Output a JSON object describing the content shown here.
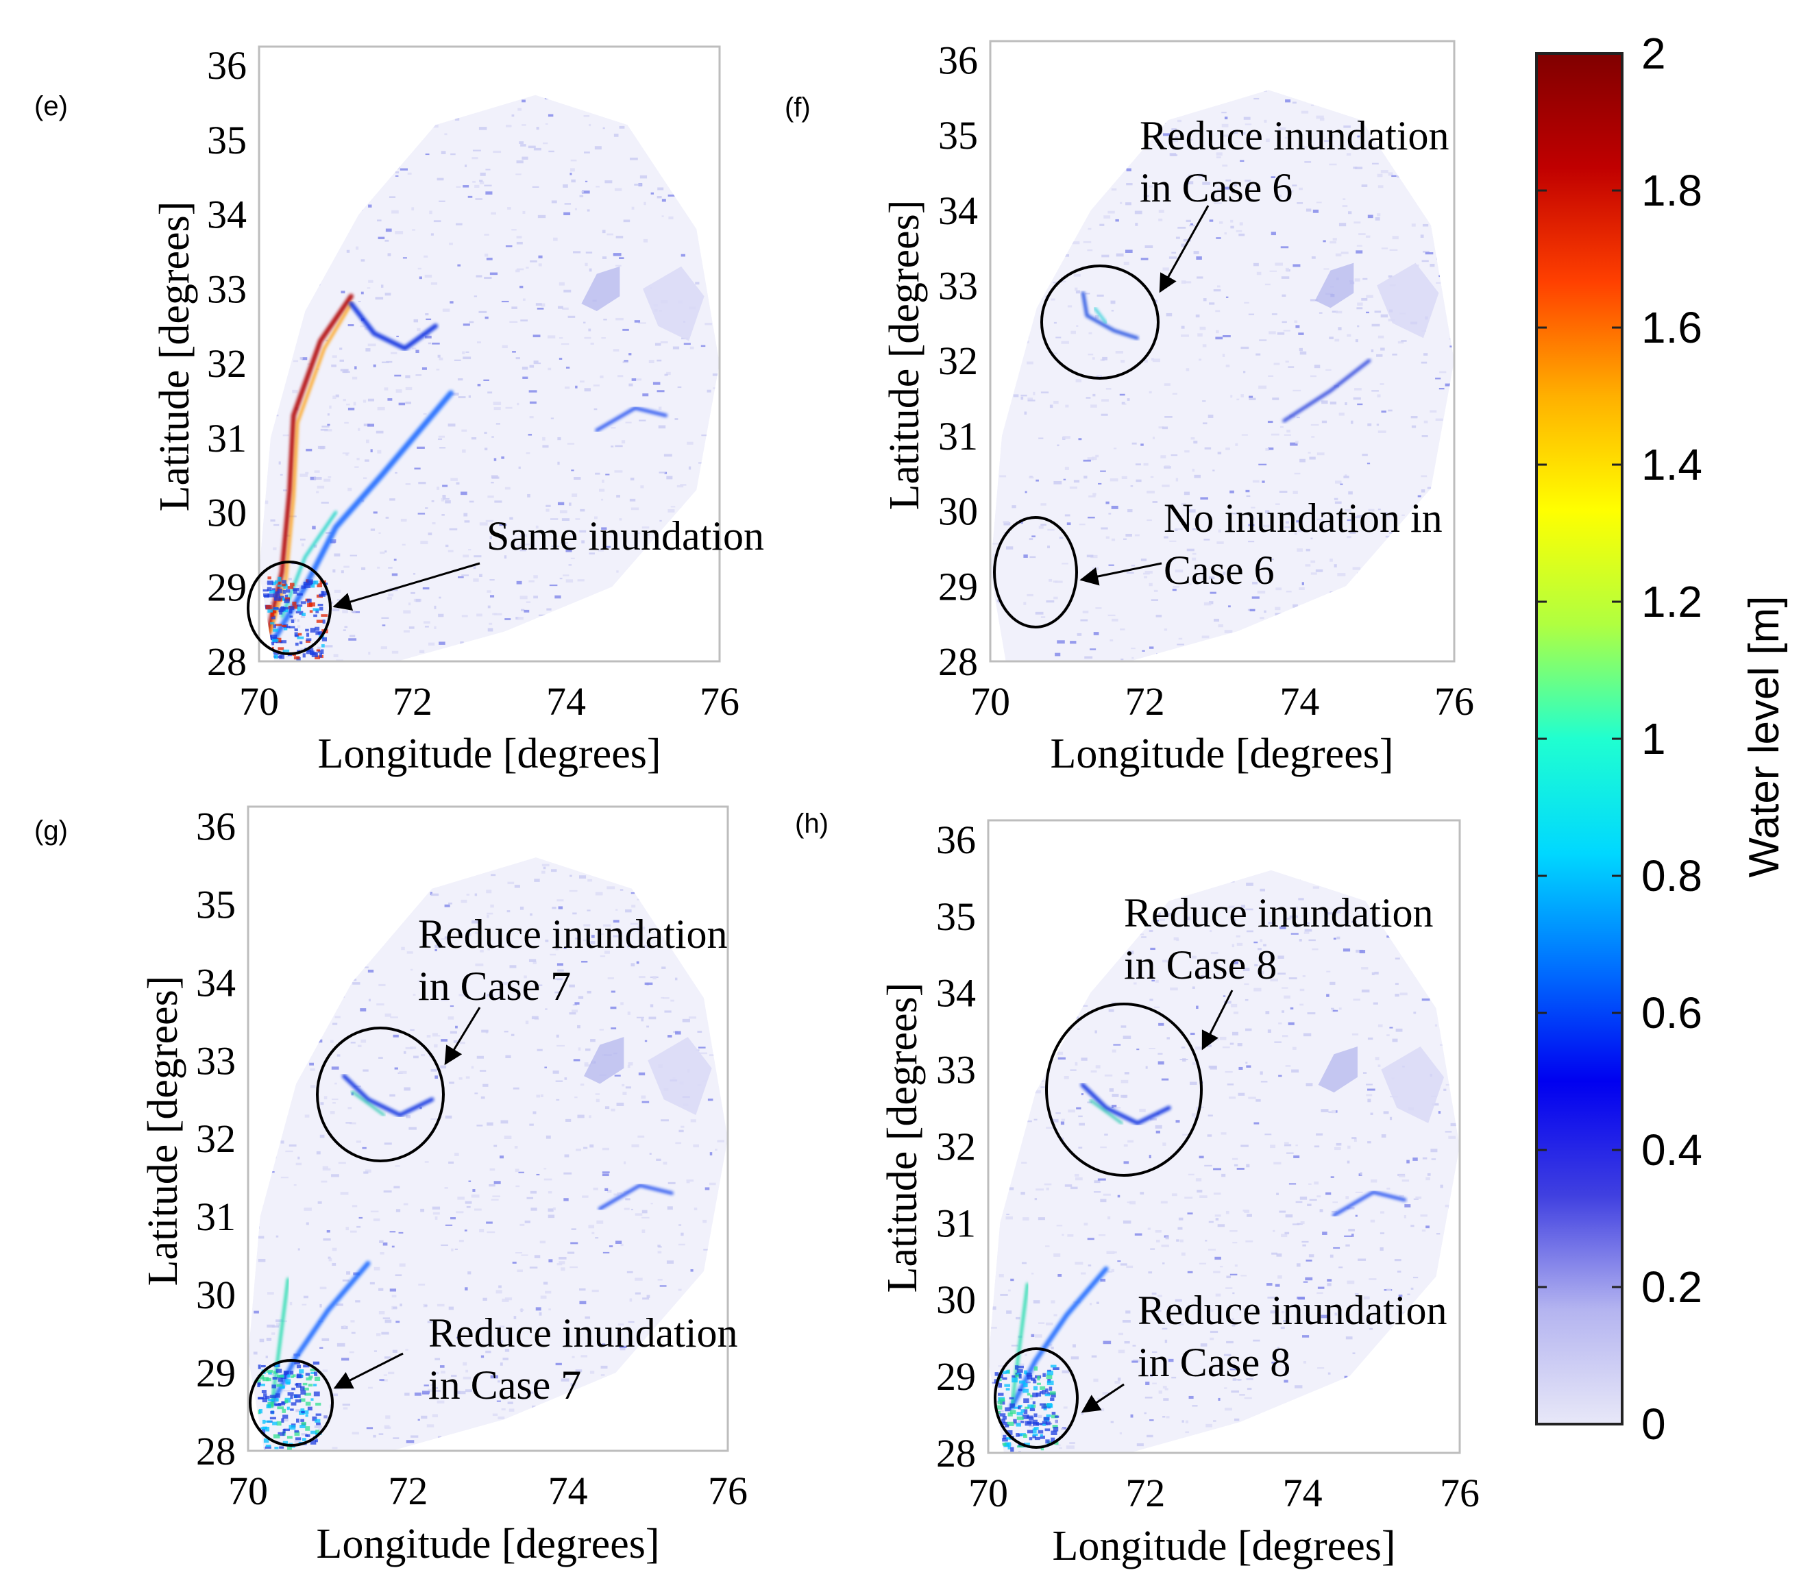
{
  "figure": {
    "colorbar": {
      "label": "Water level [m]",
      "ticks": [
        "0",
        "0.2",
        "0.4",
        "0.6",
        "0.8",
        "1",
        "1.2",
        "1.4",
        "1.6",
        "1.8",
        "2"
      ],
      "colors": [
        "#e8e8f8",
        "#b4b4f0",
        "#4040e0",
        "#0000f0",
        "#0070ff",
        "#00d8ff",
        "#20ffd0",
        "#b0ff40",
        "#ffff00",
        "#ffb000",
        "#ff4000",
        "#c00000",
        "#800000"
      ]
    },
    "panels": [
      {
        "label": "(e)",
        "xlabel": "Longitude [degrees]",
        "ylabel": "Latitude  [degrees]",
        "xticks": [
          "70",
          "72",
          "74",
          "76"
        ],
        "yticks": [
          "28",
          "29",
          "30",
          "31",
          "32",
          "33",
          "34",
          "35",
          "36"
        ],
        "annotations": [
          {
            "lines": [
              "Same inundation"
            ]
          }
        ]
      },
      {
        "label": "(f)",
        "xlabel": "Longitude [degrees]",
        "ylabel": "Latitude  [degrees]",
        "xticks": [
          "70",
          "72",
          "74",
          "76"
        ],
        "yticks": [
          "28",
          "29",
          "30",
          "31",
          "32",
          "33",
          "34",
          "35",
          "36"
        ],
        "annotations": [
          {
            "lines": [
              "Reduce inundation",
              "in Case 6"
            ]
          },
          {
            "lines": [
              "No inundation in",
              "Case 6"
            ]
          }
        ]
      },
      {
        "label": "(g)",
        "xlabel": "Longitude [degrees]",
        "ylabel": "Latitude  [degrees]",
        "xticks": [
          "70",
          "72",
          "74",
          "76"
        ],
        "yticks": [
          "28",
          "29",
          "30",
          "31",
          "32",
          "33",
          "34",
          "35",
          "36"
        ],
        "annotations": [
          {
            "lines": [
              "Reduce inundation",
              "in Case 7"
            ]
          },
          {
            "lines": [
              "Reduce inundation",
              "in Case 7"
            ]
          }
        ]
      },
      {
        "label": "(h)",
        "xlabel": "Longitude [degrees]",
        "ylabel": "Latitude  [degrees]",
        "xticks": [
          "70",
          "72",
          "74",
          "76"
        ],
        "yticks": [
          "28",
          "29",
          "30",
          "31",
          "32",
          "33",
          "34",
          "35",
          "36"
        ],
        "annotations": [
          {
            "lines": [
              "Reduce inundation",
              "in Case 8"
            ]
          },
          {
            "lines": [
              "Reduce inundation",
              "in Case 8"
            ]
          }
        ]
      }
    ]
  }
}
